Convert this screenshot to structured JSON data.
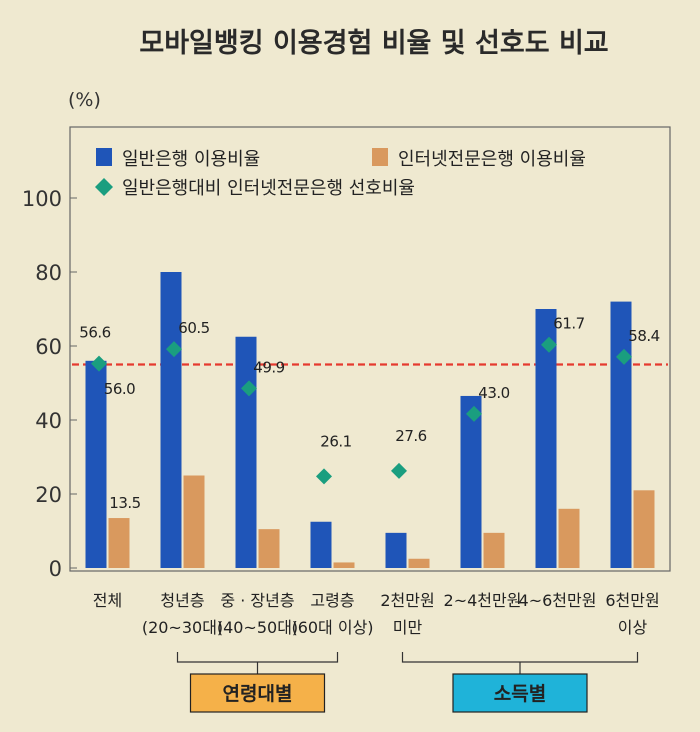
{
  "chart_data": {
    "type": "bar",
    "title": "모바일뱅킹 이용경험 비율 및 선호도 비교",
    "unit_label": "(%)",
    "ylim": [
      0,
      120
    ],
    "yticks": [
      0,
      20,
      40,
      60,
      80,
      100
    ],
    "grid": false,
    "legend_position": "top",
    "reference_line": 55,
    "categories": [
      [
        "전체"
      ],
      [
        "청년층",
        "(20~30대)"
      ],
      [
        "중 · 장년층",
        "(40~50대)"
      ],
      [
        "고령층",
        "(60대 이상)"
      ],
      [
        "2천만원",
        "미만"
      ],
      [
        "2~4천만원"
      ],
      [
        "4~6천만원"
      ],
      [
        "6천만원",
        "이상"
      ]
    ],
    "series": [
      {
        "name": "일반은행 이용비율",
        "kind": "bar",
        "color": "#1f55b8",
        "values": [
          56.0,
          80.0,
          62.5,
          12.5,
          9.5,
          46.5,
          70.0,
          72.0
        ],
        "labels": [
          "56.0",
          "",
          "",
          "",
          "",
          "",
          "",
          ""
        ]
      },
      {
        "name": "인터넷전문은행 이용비율",
        "kind": "bar",
        "color": "#d9995e",
        "values": [
          13.5,
          25.0,
          10.5,
          1.5,
          2.5,
          9.5,
          16.0,
          21.0
        ],
        "labels": [
          "13.5",
          "",
          "",
          "",
          "",
          "",
          "",
          ""
        ]
      },
      {
        "name": "일반은행대비 인터넷전문은행 선호비율",
        "kind": "marker",
        "color": "#1a9e7f",
        "values": [
          56.6,
          60.5,
          49.9,
          26.1,
          27.6,
          43.0,
          61.7,
          58.4
        ],
        "labels": [
          "56.6",
          "60.5",
          "49.9",
          "26.1",
          "27.6",
          "43.0",
          "61.7",
          "58.4"
        ]
      }
    ],
    "groups": [
      {
        "label": "연령대별",
        "from": 1,
        "to": 3,
        "color": "#f5b149"
      },
      {
        "label": "소득별",
        "from": 4,
        "to": 7,
        "color": "#1fb3d9"
      }
    ]
  }
}
